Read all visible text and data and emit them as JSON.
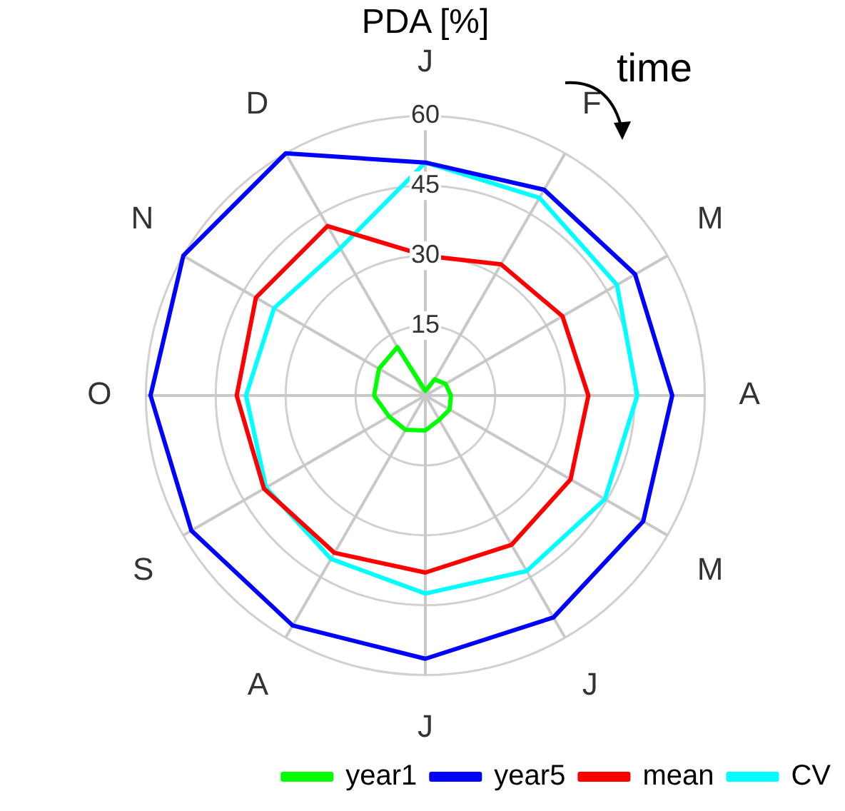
{
  "chart_data": {
    "type": "radar",
    "title": "PDA [%]",
    "annotations": [
      "time"
    ],
    "categories": [
      "J",
      "F",
      "M",
      "A",
      "M",
      "J",
      "J",
      "A",
      "S",
      "O",
      "N",
      "D"
    ],
    "series": [
      {
        "name": "year1",
        "color": "#00ff00",
        "values": [
          1,
          4,
          5,
          5.5,
          6,
          6,
          7.5,
          8.5,
          9,
          11,
          11.5,
          12
        ]
      },
      {
        "name": "year5",
        "color": "#0000ff",
        "values": [
          50,
          51,
          52,
          53,
          54,
          55,
          56.5,
          57,
          58,
          59,
          60,
          60
        ]
      },
      {
        "name": "mean",
        "color": "#ff0000",
        "values": [
          30,
          32.5,
          34,
          35,
          36,
          37,
          38,
          39,
          40,
          40.5,
          42,
          42
        ]
      },
      {
        "name": "CV",
        "color": "#00ffff",
        "values": [
          50,
          49,
          47.5,
          45.5,
          44.5,
          43.5,
          42.5,
          40.5,
          39.5,
          38.5,
          37.5,
          36.5
        ]
      }
    ],
    "ylim": [
      0,
      60
    ],
    "yticks": [
      15,
      30,
      45,
      60
    ],
    "grid": true,
    "legend": "bottom right",
    "marker": "none",
    "line_style": "solid"
  }
}
